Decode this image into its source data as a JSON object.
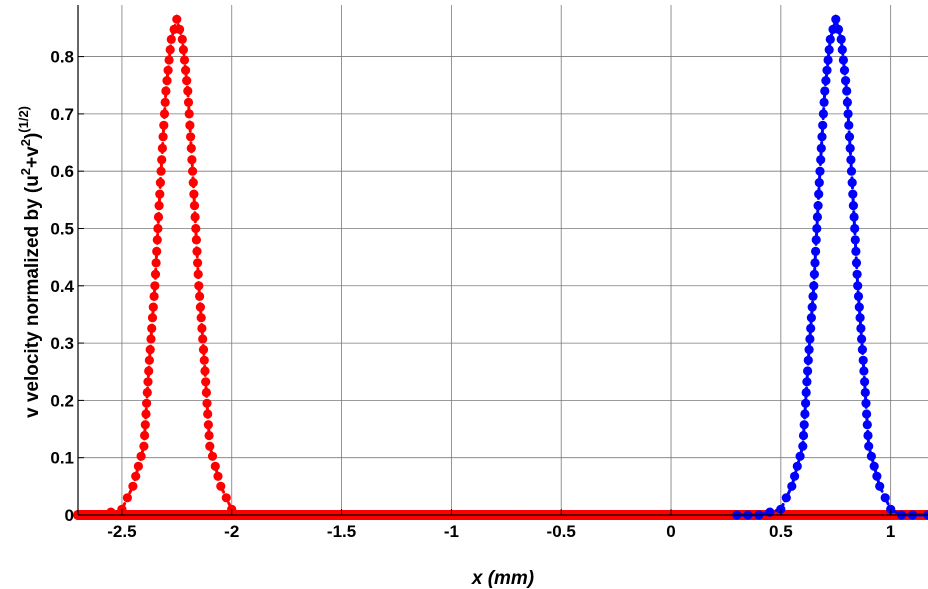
{
  "chart_data": {
    "type": "line",
    "title": "",
    "xlabel": "x (mm)",
    "ylabel": {
      "parts": [
        "v velocity normalized by (u",
        "2",
        "+v",
        "2",
        ")",
        "(1/2)"
      ]
    },
    "xlim": [
      -2.7,
      1.17
    ],
    "ylim": [
      0,
      0.89
    ],
    "xticks": [
      "-2.5",
      "-2",
      "-1.5",
      "-1",
      "-0.5",
      "0",
      "0.5",
      "1"
    ],
    "xtick_values": [
      -2.5,
      -2,
      -1.5,
      -1,
      -0.5,
      0,
      0.5,
      1
    ],
    "yticks": [
      "0",
      "0.1",
      "0.2",
      "0.3",
      "0.4",
      "0.5",
      "0.6",
      "0.7",
      "0.8"
    ],
    "ytick_values": [
      0,
      0.1,
      0.2,
      0.3,
      0.4,
      0.5,
      0.6,
      0.7,
      0.8
    ],
    "grid": true,
    "legend": "none",
    "series": [
      {
        "color": "#ff0000",
        "line_style": "dotted",
        "marker": "filled-circle",
        "baseline_range": [
          -2.7,
          1.17
        ],
        "x": [
          -2.7,
          -2.6,
          -2.5,
          -2.45,
          -2.4,
          -2.375,
          -2.35,
          -2.325,
          -2.3,
          -2.275,
          -2.25,
          -2.225,
          -2.2,
          -2.175,
          -2.15,
          -2.125,
          -2.1,
          -2.05,
          -2.0,
          -1.95,
          -1.9,
          -1.8
        ],
        "y": [
          0.0,
          0.0,
          0.01,
          0.05,
          0.12,
          0.27,
          0.4,
          0.58,
          0.74,
          0.83,
          0.865,
          0.83,
          0.74,
          0.58,
          0.4,
          0.27,
          0.12,
          0.05,
          0.01,
          0.0,
          0.0,
          0.0
        ]
      },
      {
        "color": "#0000ff",
        "line_style": "dash-dot",
        "marker": "filled-circle",
        "baseline_range": [
          -2.7,
          0.45
        ],
        "x": [
          0.3,
          0.4,
          0.5,
          0.55,
          0.6,
          0.625,
          0.65,
          0.675,
          0.7,
          0.725,
          0.75,
          0.775,
          0.8,
          0.825,
          0.85,
          0.875,
          0.9,
          0.95,
          1.0,
          1.05,
          1.1,
          1.17
        ],
        "y": [
          0.0,
          0.0,
          0.01,
          0.05,
          0.12,
          0.27,
          0.4,
          0.58,
          0.74,
          0.83,
          0.865,
          0.83,
          0.74,
          0.58,
          0.4,
          0.27,
          0.12,
          0.05,
          0.01,
          0.0,
          0.0,
          0.0
        ]
      }
    ]
  }
}
